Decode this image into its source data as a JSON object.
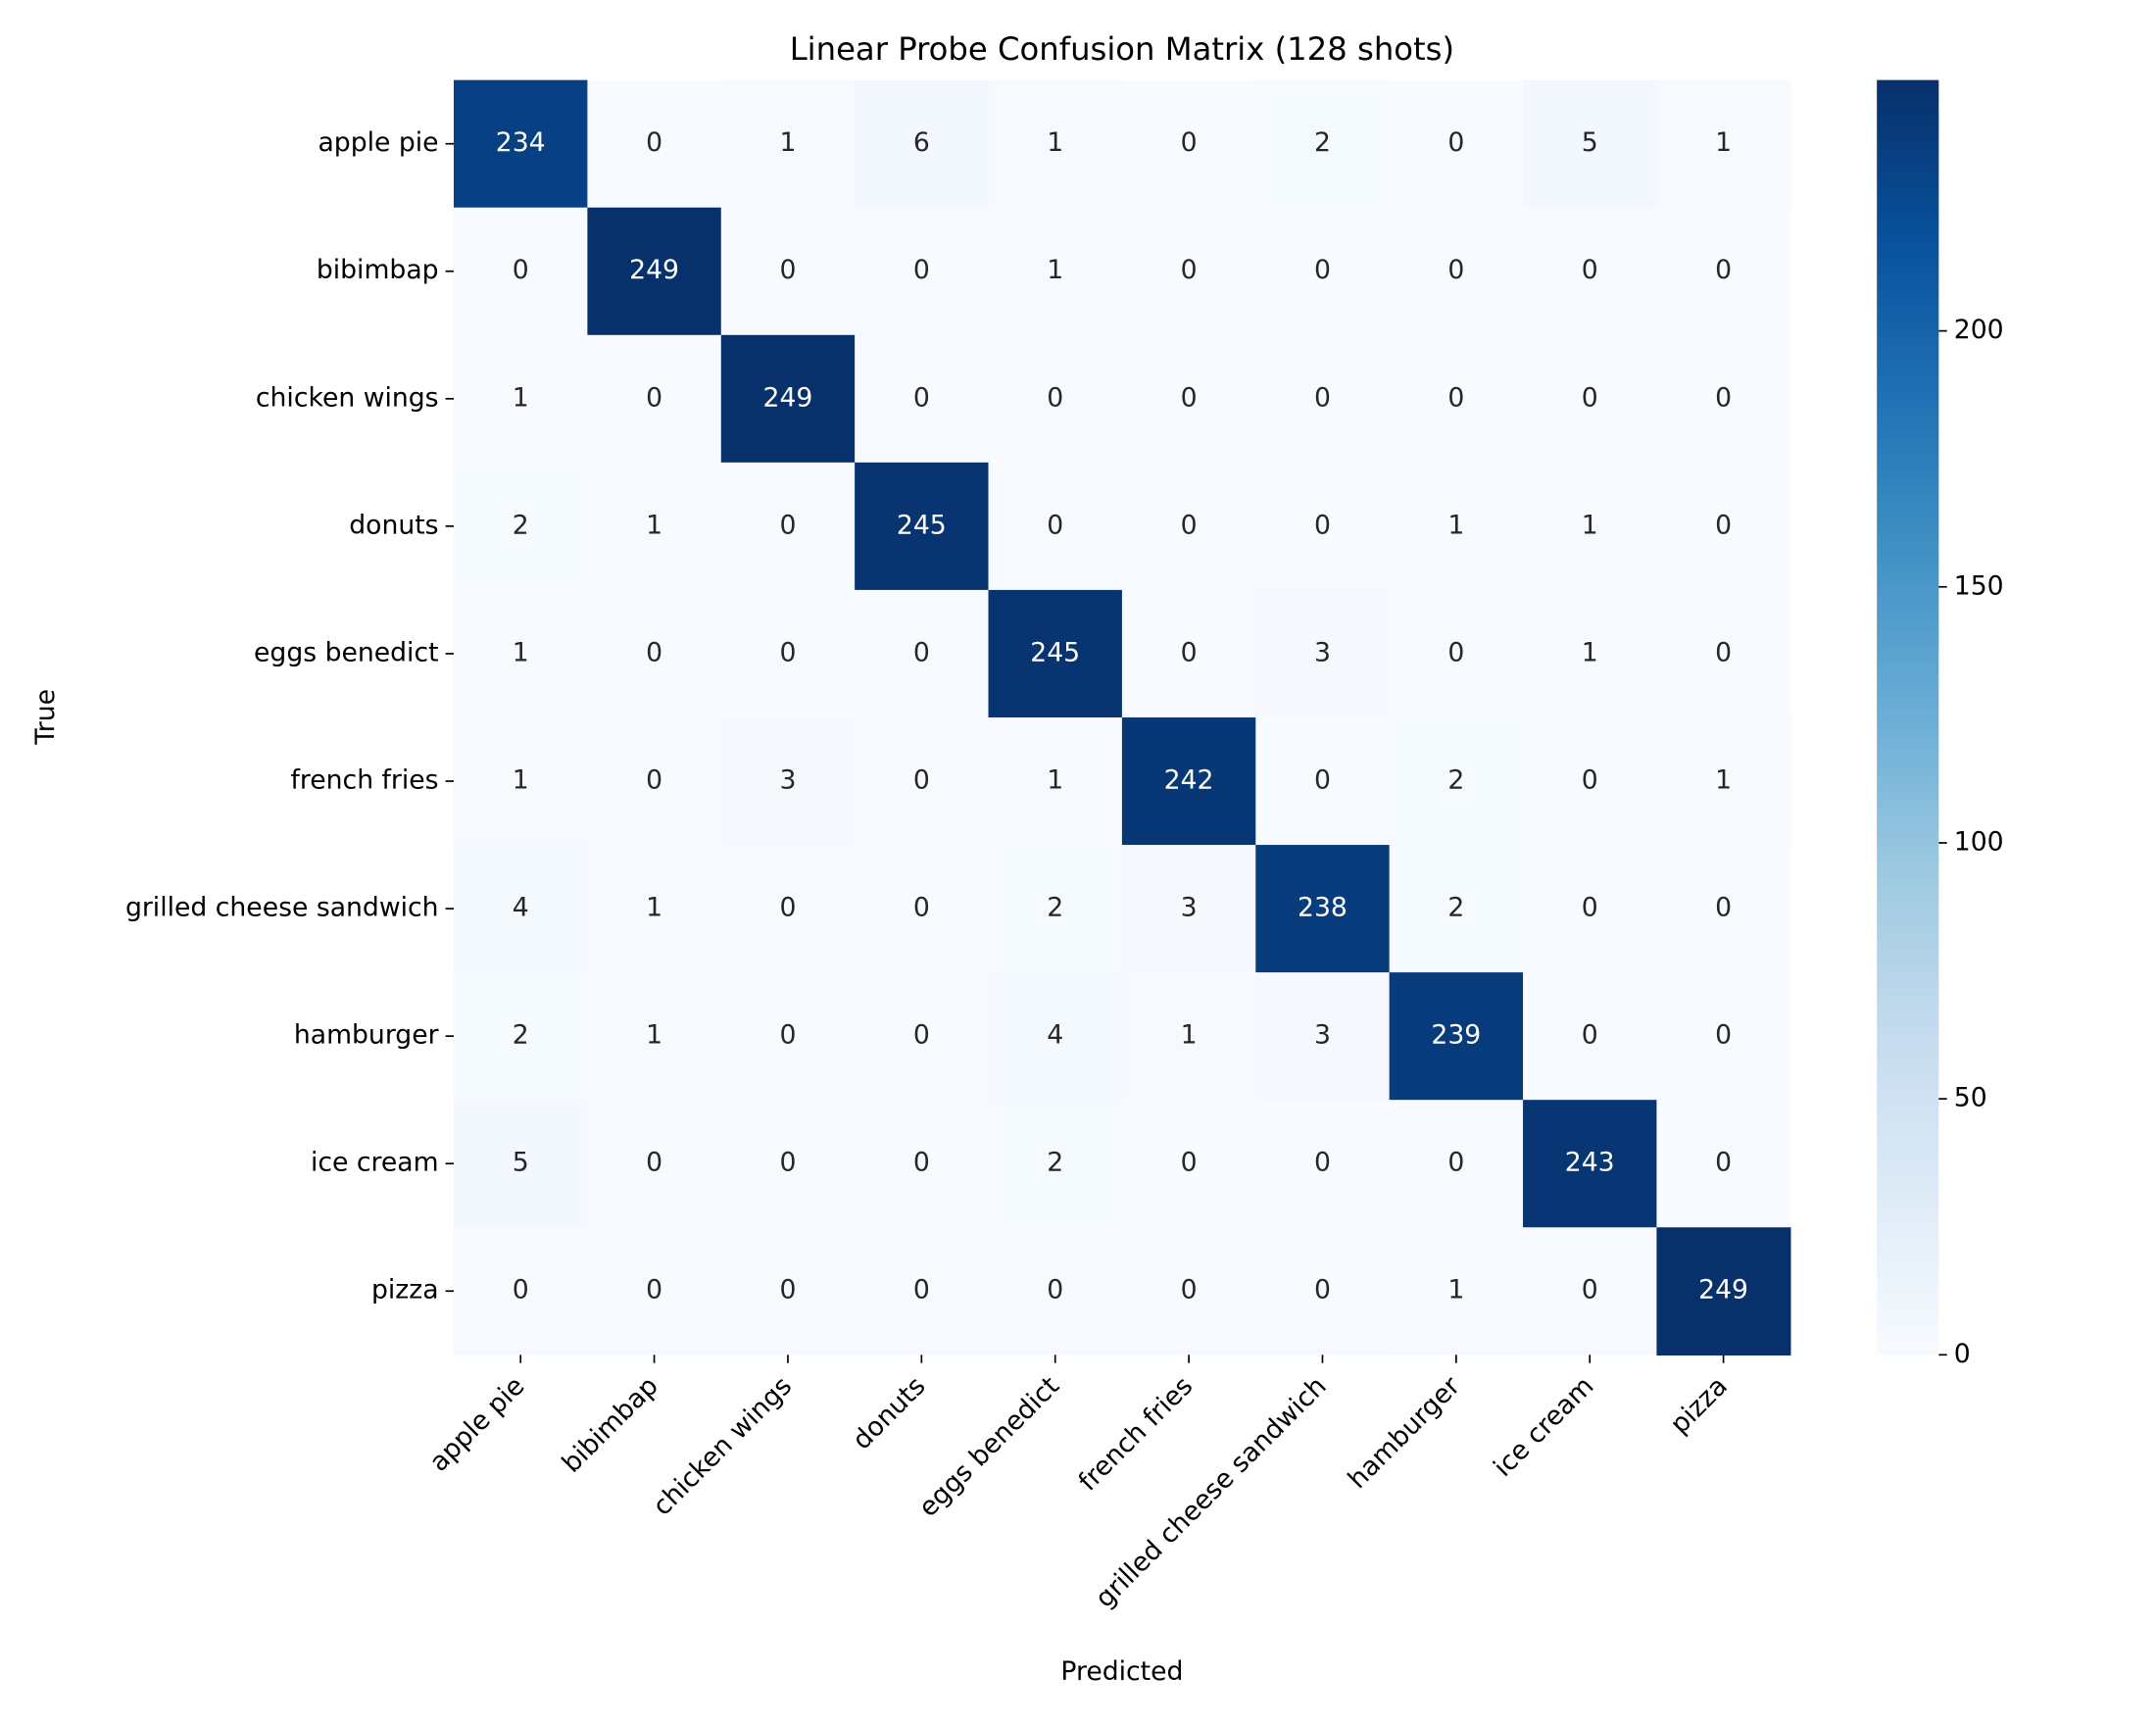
{
  "chart_data": {
    "type": "heatmap",
    "title": "Linear Probe Confusion Matrix (128 shots)",
    "xlabel": "Predicted",
    "ylabel": "True",
    "x_categories": [
      "apple pie",
      "bibimbap",
      "chicken wings",
      "donuts",
      "eggs benedict",
      "french fries",
      "grilled cheese sandwich",
      "hamburger",
      "ice cream",
      "pizza"
    ],
    "y_categories": [
      "apple pie",
      "bibimbap",
      "chicken wings",
      "donuts",
      "eggs benedict",
      "french fries",
      "grilled cheese sandwich",
      "hamburger",
      "ice cream",
      "pizza"
    ],
    "values": [
      [
        234,
        0,
        1,
        6,
        1,
        0,
        2,
        0,
        5,
        1
      ],
      [
        0,
        249,
        0,
        0,
        1,
        0,
        0,
        0,
        0,
        0
      ],
      [
        1,
        0,
        249,
        0,
        0,
        0,
        0,
        0,
        0,
        0
      ],
      [
        2,
        1,
        0,
        245,
        0,
        0,
        0,
        1,
        1,
        0
      ],
      [
        1,
        0,
        0,
        0,
        245,
        0,
        3,
        0,
        1,
        0
      ],
      [
        1,
        0,
        3,
        0,
        1,
        242,
        0,
        2,
        0,
        1
      ],
      [
        4,
        1,
        0,
        0,
        2,
        3,
        238,
        2,
        0,
        0
      ],
      [
        2,
        1,
        0,
        0,
        4,
        1,
        3,
        239,
        0,
        0
      ],
      [
        5,
        0,
        0,
        0,
        2,
        0,
        0,
        0,
        243,
        0
      ],
      [
        0,
        0,
        0,
        0,
        0,
        0,
        0,
        1,
        0,
        249
      ]
    ],
    "colormap": [
      "#f7fbff",
      "#deebf7",
      "#c6dbef",
      "#9ecae1",
      "#6baed6",
      "#4292c6",
      "#2171b5",
      "#08519c",
      "#08306b"
    ],
    "clim": [
      0,
      249
    ],
    "cticks": [
      0,
      50,
      100,
      150,
      200
    ]
  }
}
